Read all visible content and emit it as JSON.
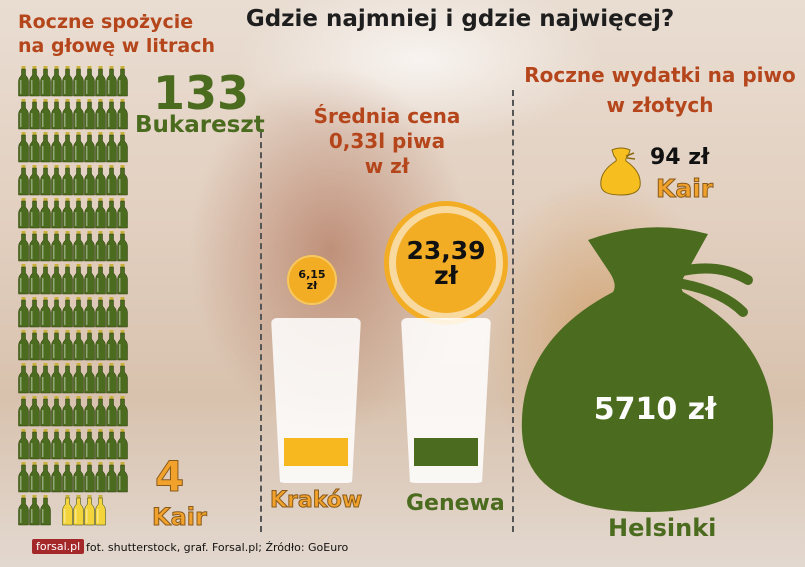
{
  "title": "Gdzie najmniej i gdzie najwięcej?",
  "consumption": {
    "heading_line1": "Roczne spożycie",
    "heading_line2": "na głowę w litrach",
    "max_value": "133",
    "max_city": "Bukareszt",
    "min_value": "4",
    "min_city": "Kair",
    "bottles_max": 133,
    "bottles_min": 4
  },
  "price": {
    "heading_line1": "Średnia cena",
    "heading_line2": "0,33l piwa",
    "heading_line3": "w zł",
    "min_value": "6,15",
    "min_unit": "zł",
    "min_city": "Kraków",
    "max_value": "23,39",
    "max_unit": "zł",
    "max_city": "Genewa"
  },
  "spending": {
    "heading_line1": "Roczne wydatki na piwo",
    "heading_line2": "w złotych",
    "min_value": "94 zł",
    "min_city": "Kair",
    "max_value": "5710 zł",
    "max_city": "Helsinki"
  },
  "footer": {
    "logo": "forsal.pl",
    "credits": "fot. shutterstock, graf. Forsal.pl; Źródło: GoEuro"
  },
  "colors": {
    "green": "#4b6b1f",
    "orange": "#f1a22c",
    "heading": "#b5461c",
    "coin": "#f2ad25",
    "logo": "#a4272a"
  }
}
